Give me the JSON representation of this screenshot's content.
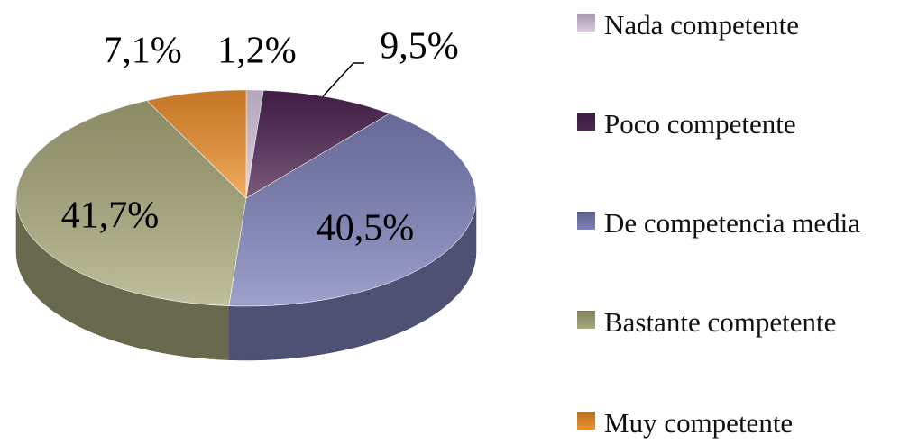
{
  "chart_data": {
    "type": "pie",
    "categories": [
      "Nada competente",
      "Poco competente",
      "De competencia media",
      "Bastante competente",
      "Muy competente"
    ],
    "values": [
      1.2,
      9.5,
      40.5,
      41.7,
      7.1
    ],
    "value_labels": [
      "1,2%",
      "9,5%",
      "40,5%",
      "41,7%",
      "7,1%"
    ],
    "colors": [
      "#dccbe3",
      "#4e2553",
      "#7e82bb",
      "#aaaa7c",
      "#f0922e"
    ]
  }
}
